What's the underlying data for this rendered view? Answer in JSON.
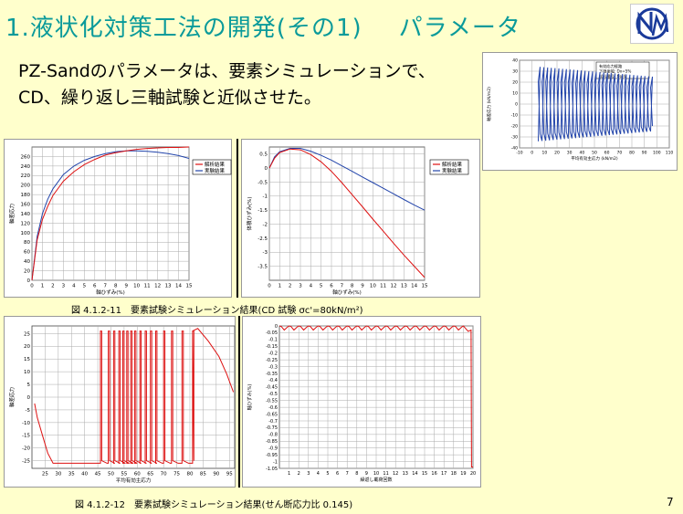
{
  "title": {
    "part1": "1.液状化対策工法の開発(その1)",
    "part2": "パラメータ"
  },
  "body_text": "PZ-Sandのパラメータは、要素シミュレーションで、CD、繰り返し三軸試験と近似させた。",
  "captions": {
    "fig11": "図 4.1.2-11　要素試験シミュレーション結果(CD 試験 σc'=80kN/m²)",
    "fig12": "図 4.1.2-12　要素試験シミュレーション結果(せん断応力比 0.145)"
  },
  "page_number": "7",
  "colors": {
    "title": "#0a9a9a",
    "background": "#ffffcc",
    "sim": "#dd1111",
    "exp": "#2244aa"
  },
  "chart_data": [
    {
      "id": "topright",
      "type": "line",
      "legend_lines": [
        "有効応力経路",
        "下限振幅: Dx=5%",
        "試料番号: No.4"
      ],
      "xlabel": "平均有効主応力 (kN/m2)",
      "ylabel": "軸差応力 (kN/m2)",
      "xlim": [
        -10,
        110
      ],
      "ylim": [
        -40,
        40
      ],
      "xticks": [
        -10,
        0,
        10,
        20,
        30,
        40,
        50,
        60,
        70,
        80,
        90,
        100,
        110
      ],
      "yticks": [
        40,
        30,
        20,
        10,
        0,
        -10,
        -20,
        -30,
        -40
      ]
    },
    {
      "id": "fig11a",
      "type": "line",
      "xlabel": "軸ひずみ(%)",
      "ylabel": "軸差応力",
      "xlim": [
        0,
        15
      ],
      "ylim": [
        0,
        280
      ],
      "xticks": [
        0,
        1,
        2,
        3,
        4,
        5,
        6,
        7,
        8,
        9,
        10,
        11,
        12,
        13,
        14,
        15
      ],
      "yticks": [
        260,
        240,
        220,
        200,
        180,
        160,
        140,
        120,
        100,
        80,
        60,
        40,
        20,
        0
      ],
      "legend": [
        "解析結果",
        "実験結果"
      ],
      "series": [
        {
          "name": "解析結果",
          "x": [
            0,
            0.5,
            1,
            1.5,
            2,
            3,
            4,
            5,
            6,
            7,
            8,
            9,
            10,
            11,
            12,
            13,
            14,
            15
          ],
          "values": [
            0,
            85,
            128,
            155,
            178,
            208,
            228,
            243,
            254,
            263,
            268,
            272,
            275,
            277,
            278,
            279,
            279,
            280
          ]
        },
        {
          "name": "実験結果",
          "x": [
            0,
            0.5,
            1,
            1.5,
            2,
            3,
            4,
            5,
            6,
            7,
            8,
            9,
            10,
            11,
            12,
            13,
            14,
            15
          ],
          "values": [
            0,
            92,
            140,
            170,
            192,
            222,
            240,
            252,
            260,
            266,
            270,
            272,
            272,
            271,
            269,
            266,
            262,
            256
          ]
        }
      ]
    },
    {
      "id": "fig11b",
      "type": "line",
      "xlabel": "軸ひずみ(%)",
      "ylabel": "体積ひずみ(%)",
      "xlim": [
        0,
        15
      ],
      "ylim": [
        -4,
        0.75
      ],
      "xticks": [
        0,
        1,
        2,
        3,
        4,
        5,
        6,
        7,
        8,
        9,
        10,
        11,
        12,
        13,
        14,
        15
      ],
      "yticks": [
        0.5,
        0,
        -0.5,
        -1,
        -1.5,
        -2,
        -2.5,
        -3,
        -3.5
      ],
      "legend": [
        "解析結果",
        "実験結果"
      ],
      "series": [
        {
          "name": "解析結果",
          "x": [
            0,
            0.5,
            1,
            2,
            3,
            4,
            5,
            6,
            7,
            8,
            9,
            10,
            11,
            12,
            13,
            14,
            15
          ],
          "values": [
            0,
            0.35,
            0.55,
            0.68,
            0.65,
            0.48,
            0.22,
            -0.12,
            -0.52,
            -0.95,
            -1.38,
            -1.82,
            -2.25,
            -2.68,
            -3.1,
            -3.5,
            -3.9
          ]
        },
        {
          "name": "実験結果",
          "x": [
            0,
            0.5,
            1,
            2,
            3,
            4,
            5,
            6,
            7,
            8,
            9,
            10,
            11,
            12,
            13,
            14,
            15
          ],
          "values": [
            0,
            0.4,
            0.58,
            0.7,
            0.7,
            0.6,
            0.45,
            0.28,
            0.08,
            -0.12,
            -0.32,
            -0.52,
            -0.72,
            -0.92,
            -1.12,
            -1.32,
            -1.5
          ]
        }
      ]
    },
    {
      "id": "fig12a",
      "type": "line",
      "xlabel": "平均有効主応力",
      "ylabel": "軸差応力",
      "xlim": [
        20,
        97
      ],
      "ylim": [
        -28,
        28
      ],
      "xticks": [
        25,
        30,
        35,
        40,
        45,
        50,
        55,
        60,
        65,
        70,
        75,
        80,
        85,
        90,
        95
      ],
      "yticks": [
        25,
        20,
        15,
        10,
        5,
        0,
        -5,
        -10,
        -15,
        -20,
        -25
      ]
    },
    {
      "id": "fig12b",
      "type": "line",
      "xlabel": "繰返し載荷回数",
      "ylabel": "軸ひずみ(%)",
      "xlim": [
        0,
        20
      ],
      "ylim": [
        -1.05,
        0
      ],
      "xticks": [
        1,
        2,
        3,
        4,
        5,
        6,
        7,
        8,
        9,
        10,
        11,
        12,
        13,
        14,
        15,
        16,
        17,
        18,
        19,
        20
      ],
      "yticks": [
        0,
        -0.05,
        -0.1,
        -0.15,
        -0.2,
        -0.25,
        -0.3,
        -0.35,
        -0.4,
        -0.45,
        -0.5,
        -0.55,
        -0.6,
        -0.65,
        -0.7,
        -0.75,
        -0.8,
        -0.85,
        -0.9,
        -0.95,
        -1,
        -1.05
      ]
    }
  ]
}
